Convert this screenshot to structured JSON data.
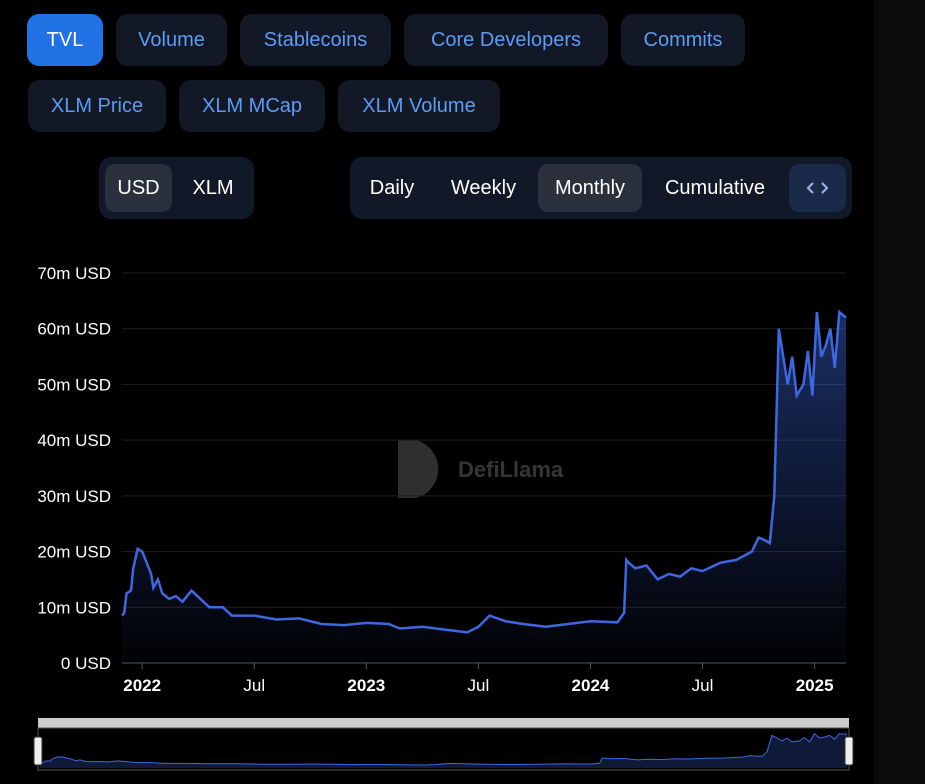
{
  "tabs": [
    "TVL",
    "Volume",
    "Stablecoins",
    "Core Developers",
    "Commits",
    "XLM Price",
    "XLM MCap",
    "XLM Volume"
  ],
  "currency_toggle": [
    "USD",
    "XLM"
  ],
  "period_toggle": [
    "Daily",
    "Weekly",
    "Monthly",
    "Cumulative"
  ],
  "watermark": "DefiLlama",
  "chart_data": {
    "type": "area",
    "color": "#3d68e0",
    "x": [
      2021.91,
      2021.92,
      2021.93,
      2021.95,
      2021.96,
      2021.98,
      2022.0,
      2022.02,
      2022.04,
      2022.05,
      2022.07,
      2022.09,
      2022.12,
      2022.15,
      2022.18,
      2022.22,
      2022.26,
      2022.3,
      2022.36,
      2022.4,
      2022.5,
      2022.6,
      2022.7,
      2022.8,
      2022.9,
      2023.0,
      2023.1,
      2023.15,
      2023.25,
      2023.35,
      2023.45,
      2023.5,
      2023.55,
      2023.62,
      2023.7,
      2023.8,
      2023.9,
      2024.0,
      2024.12,
      2024.15,
      2024.16,
      2024.17,
      2024.2,
      2024.25,
      2024.3,
      2024.35,
      2024.4,
      2024.45,
      2024.5,
      2024.58,
      2024.65,
      2024.72,
      2024.75,
      2024.78,
      2024.8,
      2024.82,
      2024.84,
      2024.86,
      2024.88,
      2024.9,
      2024.92,
      2024.95,
      2024.97,
      2024.99,
      2025.01,
      2025.03,
      2025.05,
      2025.07,
      2025.09,
      2025.11,
      2025.14
    ],
    "values": [
      8500000,
      9000000,
      12500000,
      13000000,
      17000000,
      20500000,
      20000000,
      18000000,
      16000000,
      13500000,
      15000000,
      12500000,
      11500000,
      12000000,
      11000000,
      13000000,
      11500000,
      10000000,
      10000000,
      8500000,
      8500000,
      7800000,
      8000000,
      7000000,
      6800000,
      7200000,
      7000000,
      6200000,
      6500000,
      6000000,
      5500000,
      6500000,
      8500000,
      7500000,
      7000000,
      6500000,
      7000000,
      7500000,
      7300000,
      9000000,
      18500000,
      18000000,
      17000000,
      17500000,
      15000000,
      16000000,
      15500000,
      17000000,
      16500000,
      18000000,
      18500000,
      20000000,
      22500000,
      22000000,
      21500000,
      30000000,
      60000000,
      55000000,
      50000000,
      55000000,
      48000000,
      50000000,
      56000000,
      48000000,
      63000000,
      55000000,
      57000000,
      60000000,
      53000000,
      63000000,
      62000000
    ],
    "xlim": [
      2021.91,
      2025.14
    ],
    "xticks": [
      {
        "value": 2022,
        "label": "2022"
      },
      {
        "value": 2022.5,
        "label": "Jul"
      },
      {
        "value": 2023,
        "label": "2023"
      },
      {
        "value": 2023.5,
        "label": "Jul"
      },
      {
        "value": 2024,
        "label": "2024"
      },
      {
        "value": 2024.5,
        "label": "Jul"
      },
      {
        "value": 2025,
        "label": "2025"
      }
    ],
    "ylim": [
      0,
      70000000
    ],
    "yticks": [
      {
        "value": 0,
        "label": "0 USD"
      },
      {
        "value": 10000000,
        "label": "10m USD"
      },
      {
        "value": 20000000,
        "label": "20m USD"
      },
      {
        "value": 30000000,
        "label": "30m USD"
      },
      {
        "value": 40000000,
        "label": "40m USD"
      },
      {
        "value": 50000000,
        "label": "50m USD"
      },
      {
        "value": 60000000,
        "label": "60m USD"
      },
      {
        "value": 70000000,
        "label": "70m USD"
      }
    ],
    "grid": true
  }
}
